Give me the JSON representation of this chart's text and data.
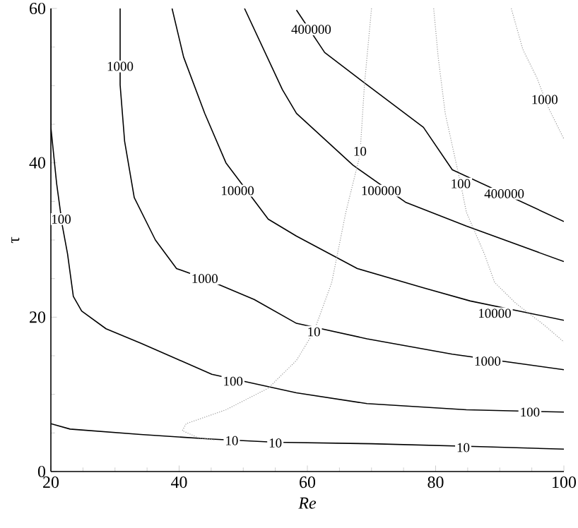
{
  "chart_data": {
    "type": "line",
    "xlabel": "Re",
    "ylabel": "τ",
    "xlim": [
      20,
      100
    ],
    "ylim": [
      0,
      60
    ],
    "xticks": [
      20,
      40,
      60,
      80,
      100
    ],
    "yticks": [
      0,
      20,
      40,
      60
    ],
    "marker": "none",
    "series": [
      {
        "color": "#000000",
        "line_style": "solid",
        "x": [
          20,
          23,
          34,
          45,
          55,
          70,
          88,
          100
        ],
        "values": [
          6.2,
          5.5,
          4.8,
          4.2,
          3.8,
          3.6,
          3.2,
          2.9
        ]
      },
      {
        "color": "#000000",
        "line_style": "solid",
        "x": [
          20,
          20,
          20.9,
          21.8,
          22.6,
          23.5,
          24.8,
          28.6,
          34.1,
          38.5,
          45.1,
          58.3,
          69.3,
          84.8,
          100
        ],
        "values": [
          60,
          44.6,
          37.3,
          31.8,
          28.2,
          22.7,
          20.8,
          18.5,
          16.6,
          15.0,
          12.6,
          10.2,
          8.8,
          8.0,
          7.7
        ]
      },
      {
        "color": "#000000",
        "line_style": "solid",
        "x": [
          30.8,
          30.8,
          31.5,
          33.0,
          36.3,
          39.6,
          44.0,
          51.7,
          58.3,
          69.3,
          82.6,
          100
        ],
        "values": [
          60,
          50.1,
          42.8,
          35.5,
          30.0,
          26.3,
          25.0,
          22.3,
          19.2,
          17.2,
          15.2,
          13.2
        ]
      },
      {
        "color": "#000000",
        "line_style": "solid",
        "x": [
          38.9,
          40.7,
          44.0,
          47.3,
          53.9,
          58.3,
          67.8,
          78.1,
          85.4,
          100
        ],
        "values": [
          60,
          53.7,
          46.4,
          40.0,
          32.7,
          30.5,
          26.3,
          23.8,
          22.1,
          19.6
        ]
      },
      {
        "color": "#000000",
        "line_style": "solid",
        "x": [
          50.2,
          56.1,
          58.3,
          67.1,
          75.3,
          84.8,
          100
        ],
        "values": [
          60,
          49.5,
          46.4,
          39.7,
          34.9,
          31.8,
          27.2
        ]
      },
      {
        "color": "#000000",
        "line_style": "solid",
        "x": [
          58.3,
          62.7,
          69.3,
          78.1,
          82.6,
          100
        ],
        "values": [
          59.8,
          54.3,
          50.1,
          44.6,
          39.1,
          32.4
        ]
      },
      {
        "color": "#999999",
        "line_style": "dotted",
        "x": [
          70.0,
          68.9,
          68.2,
          66.0,
          63.8,
          61.0,
          58.3,
          53.9,
          47.3,
          41.1,
          40.5,
          42.9,
          45.5
        ],
        "values": [
          60,
          50.1,
          41.0,
          33.6,
          24.5,
          18.1,
          14.4,
          10.8,
          8.0,
          6.2,
          5.3,
          4.4,
          4.1
        ]
      },
      {
        "color": "#999999",
        "line_style": "dotted",
        "x": [
          79.7,
          80.4,
          81.5,
          83.9,
          84.8,
          87.6,
          89.2,
          92.5,
          96.9,
          100
        ],
        "values": [
          60,
          53.7,
          46.4,
          37.3,
          33.6,
          28.2,
          24.5,
          21.8,
          19.0,
          16.8
        ]
      },
      {
        "color": "#999999",
        "line_style": "dotted",
        "x": [
          91.8,
          93.6,
          95.8,
          97.5,
          100
        ],
        "values": [
          60,
          54.7,
          51.0,
          47.3,
          43.1
        ]
      }
    ],
    "annotations": [
      {
        "text": "10",
        "x": 48.2,
        "y": 4.0
      },
      {
        "text": "10",
        "x": 55.0,
        "y": 3.7
      },
      {
        "text": "10",
        "x": 84.3,
        "y": 3.1
      },
      {
        "text": "100",
        "x": 21.6,
        "y": 32.7
      },
      {
        "text": "100",
        "x": 48.4,
        "y": 11.7
      },
      {
        "text": "100",
        "x": 94.7,
        "y": 7.7
      },
      {
        "text": "1000",
        "x": 30.8,
        "y": 52.5
      },
      {
        "text": "1000",
        "x": 44.0,
        "y": 25.0
      },
      {
        "text": "1000",
        "x": 88.1,
        "y": 14.3
      },
      {
        "text": "10000",
        "x": 49.1,
        "y": 36.4
      },
      {
        "text": "10000",
        "x": 89.2,
        "y": 20.5
      },
      {
        "text": "100000",
        "x": 71.5,
        "y": 36.4
      },
      {
        "text": "400000",
        "x": 60.6,
        "y": 57.3
      },
      {
        "text": "400000",
        "x": 90.7,
        "y": 36.0
      },
      {
        "text": "10",
        "x": 68.2,
        "y": 41.5
      },
      {
        "text": "10",
        "x": 61.0,
        "y": 18.1
      },
      {
        "text": "100",
        "x": 83.9,
        "y": 37.3
      },
      {
        "text": "1000",
        "x": 97.0,
        "y": 48.2
      }
    ]
  }
}
